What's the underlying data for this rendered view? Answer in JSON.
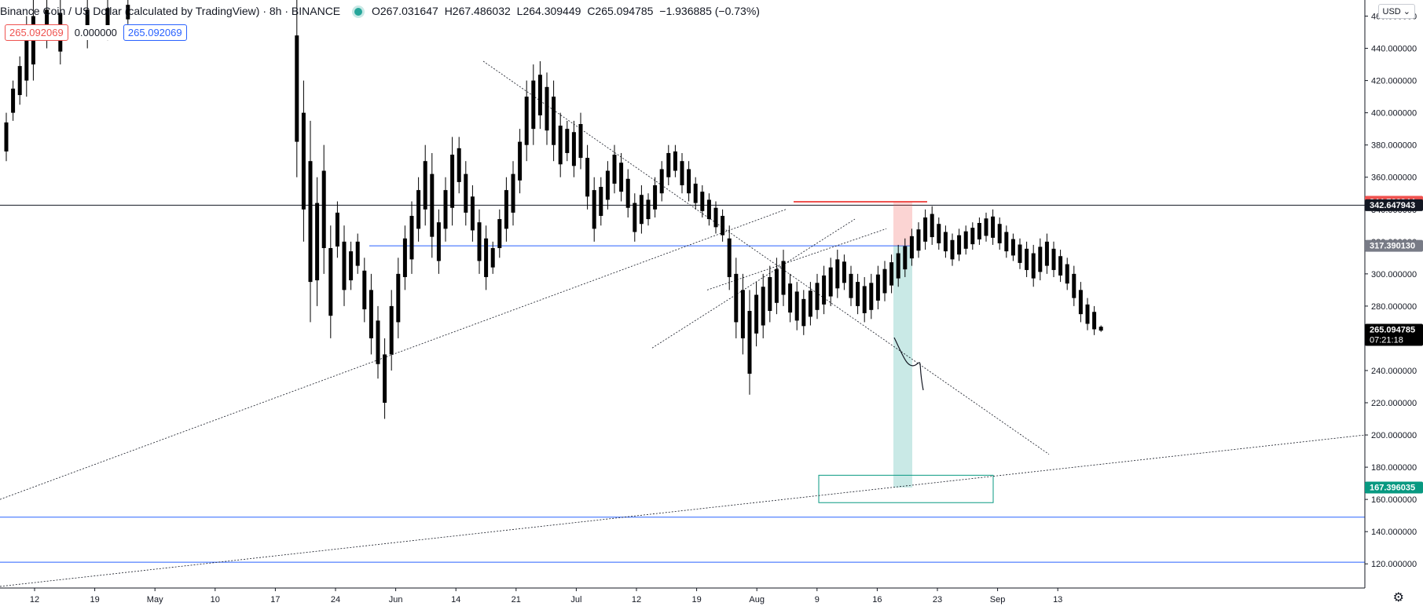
{
  "header": {
    "symbol_title": "Binance Coin / US Dollar (calculated by TradingView) · 8h · BINANCE",
    "open": "O267.031647",
    "high": "H267.486032",
    "low": "L264.309449",
    "close": "C265.094785",
    "change": "−1.936885 (−0.73%)",
    "bid_badge": "265.092069",
    "spread_badge": "0.000000",
    "ask_badge": "265.092069",
    "currency_button": "USD ⌄"
  },
  "colors": {
    "up": "#26a69a",
    "down": "#ef5350",
    "blue": "#2962ff",
    "candle": "#000000",
    "stop_zone": "rgba(239,83,80,0.25)",
    "target_zone": "rgba(38,166,154,0.25)"
  },
  "chart_data": {
    "type": "candlestick",
    "title": "Binance Coin / US Dollar (calculated by TradingView) · 8h · BINANCE",
    "xlabel": "",
    "ylabel": "",
    "ylim": [
      105,
      470
    ],
    "y_ticks": [
      120,
      140,
      160,
      180,
      200,
      220,
      240,
      260,
      280,
      300,
      320,
      340,
      360,
      380,
      400,
      420,
      440,
      460
    ],
    "x_ticks": [
      "12",
      "19",
      "May",
      "10",
      "17",
      "24",
      "Jun",
      "14",
      "21",
      "Jul",
      "12",
      "19",
      "Aug",
      "9",
      "16",
      "23",
      "Sep",
      "13"
    ],
    "price_labels": [
      {
        "text": "344.766944",
        "value": 344.766944,
        "bg": "#ef5350",
        "color": "#ffffff"
      },
      {
        "text": "342.647943",
        "value": 342.647943,
        "bg": "#131722",
        "color": "#ffffff"
      },
      {
        "text": "317.390130",
        "value": 317.39013,
        "bg": "#787b86",
        "color": "#ffffff"
      },
      {
        "text": "265.094785",
        "sub": "07:21:18",
        "value": 265.094785,
        "bg": "#000000",
        "color": "#ffffff"
      },
      {
        "text": "167.396035",
        "value": 167.396035,
        "bg": "#089981",
        "color": "#ffffff"
      }
    ],
    "series": [
      {
        "name": "BNB/USD",
        "points": [
          [
            0,
            370,
            400
          ],
          [
            0.1,
            395,
            420
          ],
          [
            0.2,
            405,
            435
          ],
          [
            0.3,
            410,
            460
          ],
          [
            0.4,
            420,
            470
          ],
          [
            0.6,
            440,
            470
          ],
          [
            0.8,
            430,
            470
          ],
          [
            1.2,
            440,
            470
          ],
          [
            1.5,
            445,
            470
          ],
          [
            1.8,
            455,
            470
          ],
          [
            4.3,
            360,
            470
          ],
          [
            4.4,
            320,
            420
          ],
          [
            4.5,
            270,
            395
          ],
          [
            4.6,
            280,
            360
          ],
          [
            4.7,
            300,
            380
          ],
          [
            4.8,
            260,
            330
          ],
          [
            4.9,
            310,
            345
          ],
          [
            5.0,
            280,
            330
          ],
          [
            5.1,
            290,
            320
          ],
          [
            5.2,
            300,
            325
          ],
          [
            5.3,
            270,
            310
          ],
          [
            5.4,
            250,
            300
          ],
          [
            5.5,
            235,
            280
          ],
          [
            5.6,
            210,
            260
          ],
          [
            5.7,
            240,
            290
          ],
          [
            5.8,
            260,
            310
          ],
          [
            5.9,
            290,
            330
          ],
          [
            6.0,
            300,
            345
          ],
          [
            6.1,
            320,
            360
          ],
          [
            6.2,
            330,
            380
          ],
          [
            6.3,
            310,
            375
          ],
          [
            6.4,
            300,
            340
          ],
          [
            6.5,
            320,
            360
          ],
          [
            6.6,
            330,
            385
          ],
          [
            6.7,
            350,
            385
          ],
          [
            6.8,
            330,
            370
          ],
          [
            6.9,
            320,
            355
          ],
          [
            7.0,
            300,
            340
          ],
          [
            7.1,
            290,
            330
          ],
          [
            7.2,
            300,
            320
          ],
          [
            7.3,
            310,
            340
          ],
          [
            7.4,
            320,
            360
          ],
          [
            7.5,
            330,
            370
          ],
          [
            7.6,
            350,
            390
          ],
          [
            7.7,
            370,
            420
          ],
          [
            7.8,
            380,
            430
          ],
          [
            7.9,
            390,
            432
          ],
          [
            8.0,
            380,
            425
          ],
          [
            8.1,
            370,
            420
          ],
          [
            8.2,
            360,
            400
          ],
          [
            8.3,
            370,
            395
          ],
          [
            8.4,
            360,
            395
          ],
          [
            8.5,
            365,
            400
          ],
          [
            8.6,
            340,
            380
          ],
          [
            8.7,
            320,
            360
          ],
          [
            8.8,
            330,
            360
          ],
          [
            8.9,
            340,
            370
          ],
          [
            9.0,
            350,
            380
          ],
          [
            9.1,
            345,
            375
          ],
          [
            9.2,
            335,
            365
          ],
          [
            9.3,
            320,
            350
          ],
          [
            9.4,
            325,
            355
          ],
          [
            9.5,
            330,
            350
          ],
          [
            9.6,
            335,
            360
          ],
          [
            9.7,
            345,
            370
          ],
          [
            9.8,
            355,
            380
          ],
          [
            9.9,
            360,
            380
          ],
          [
            10.0,
            350,
            375
          ],
          [
            10.1,
            345,
            370
          ],
          [
            10.2,
            340,
            360
          ],
          [
            10.3,
            335,
            355
          ],
          [
            10.4,
            330,
            350
          ],
          [
            10.5,
            325,
            345
          ],
          [
            10.6,
            320,
            340
          ],
          [
            10.7,
            290,
            330
          ],
          [
            10.8,
            260,
            310
          ],
          [
            10.9,
            250,
            300
          ],
          [
            11.0,
            225,
            290
          ],
          [
            11.1,
            255,
            295
          ],
          [
            11.2,
            260,
            300
          ],
          [
            11.3,
            270,
            305
          ],
          [
            11.4,
            275,
            310
          ],
          [
            11.5,
            280,
            315
          ],
          [
            11.6,
            270,
            300
          ],
          [
            11.7,
            265,
            295
          ],
          [
            11.8,
            262,
            290
          ],
          [
            11.9,
            268,
            295
          ],
          [
            12.0,
            272,
            300
          ],
          [
            12.1,
            275,
            305
          ],
          [
            12.2,
            280,
            310
          ],
          [
            12.3,
            285,
            315
          ],
          [
            12.4,
            290,
            312
          ],
          [
            12.5,
            280,
            305
          ],
          [
            12.6,
            275,
            300
          ],
          [
            12.7,
            270,
            298
          ],
          [
            12.8,
            272,
            300
          ],
          [
            12.9,
            278,
            305
          ],
          [
            13.0,
            283,
            308
          ],
          [
            13.1,
            288,
            312
          ],
          [
            13.2,
            292,
            318
          ],
          [
            13.3,
            298,
            322
          ],
          [
            13.4,
            305,
            328
          ],
          [
            13.5,
            310,
            332
          ],
          [
            13.6,
            315,
            340
          ],
          [
            13.7,
            318,
            342
          ],
          [
            13.8,
            315,
            335
          ],
          [
            13.9,
            310,
            330
          ],
          [
            14.0,
            305,
            325
          ],
          [
            14.1,
            308,
            328
          ],
          [
            14.2,
            312,
            330
          ],
          [
            14.3,
            315,
            332
          ],
          [
            14.4,
            318,
            335
          ],
          [
            14.5,
            320,
            338
          ],
          [
            14.6,
            318,
            340
          ],
          [
            14.7,
            315,
            335
          ],
          [
            14.8,
            310,
            330
          ],
          [
            14.9,
            308,
            325
          ],
          [
            15.0,
            303,
            322
          ],
          [
            15.1,
            298,
            320
          ],
          [
            15.2,
            292,
            318
          ],
          [
            15.3,
            296,
            322
          ],
          [
            15.4,
            300,
            325
          ],
          [
            15.5,
            298,
            320
          ],
          [
            15.6,
            295,
            315
          ],
          [
            15.7,
            290,
            310
          ],
          [
            15.8,
            280,
            305
          ],
          [
            15.9,
            270,
            295
          ],
          [
            16.0,
            265,
            285
          ],
          [
            16.1,
            262,
            280
          ],
          [
            16.2,
            264,
            268
          ]
        ]
      }
    ],
    "drawings": {
      "horizontal_lines": [
        {
          "value": 342.647943,
          "color": "#131722"
        },
        {
          "value": 149,
          "color": "#2962ff"
        },
        {
          "value": 121,
          "color": "#2962ff"
        }
      ],
      "resistance_line_blue_value": 317.39013,
      "stop_level": 344.766944,
      "entry_level": 317.39013,
      "target_level": 167.396035,
      "target_box": {
        "top": 175,
        "bottom": 158
      }
    }
  }
}
